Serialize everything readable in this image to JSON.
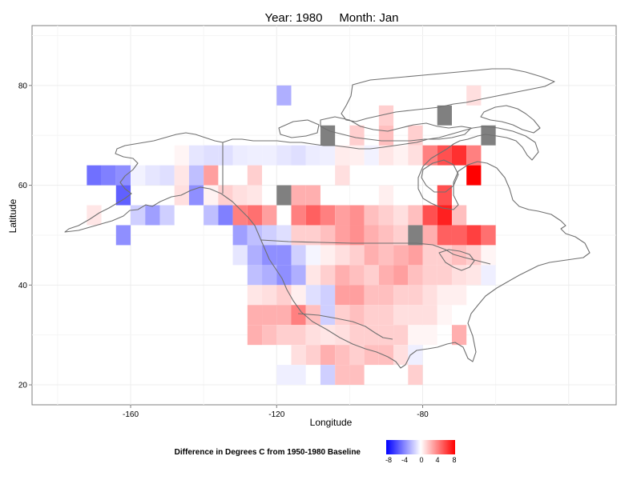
{
  "title": {
    "year_label": "Year: 1980",
    "month_label": "Month: Jan"
  },
  "axes": {
    "xlabel": "Longitude",
    "ylabel": "Latitude",
    "xticks": [
      -160,
      -120,
      -80
    ],
    "yticks": [
      20,
      40,
      60,
      80
    ],
    "xlim": [
      -187,
      -27
    ],
    "ylim": [
      16,
      92
    ]
  },
  "legend": {
    "title": "Difference in Degrees C from 1950-1980 Baseline",
    "ticks": [
      "-8",
      "-4",
      "0",
      "4",
      "8"
    ],
    "colors": {
      "low": "#0000ff",
      "mid": "#ffffff",
      "high": "#ff0000",
      "missing": "#808080"
    }
  },
  "chart_data": {
    "type": "heatmap",
    "cell_size_degrees": 4,
    "value_units": "degrees C difference",
    "cells": [
      {
        "lon": -170,
        "lat": 62,
        "v": -4.5
      },
      {
        "lon": -166,
        "lat": 62,
        "v": -4
      },
      {
        "lon": -162,
        "lat": 62,
        "v": -3.5
      },
      {
        "lon": -162,
        "lat": 58,
        "v": -5
      },
      {
        "lon": -170,
        "lat": 54,
        "v": 0.8
      },
      {
        "lon": -158,
        "lat": 54,
        "v": -1.5
      },
      {
        "lon": -154,
        "lat": 54,
        "v": -3
      },
      {
        "lon": -150,
        "lat": 54,
        "v": -1.5
      },
      {
        "lon": -162,
        "lat": 50,
        "v": -3.5
      },
      {
        "lon": -158,
        "lat": 62,
        "v": -0.4
      },
      {
        "lon": -154,
        "lat": 62,
        "v": -0.8
      },
      {
        "lon": -150,
        "lat": 62,
        "v": -1
      },
      {
        "lon": -146,
        "lat": 62,
        "v": 0.8
      },
      {
        "lon": -142,
        "lat": 62,
        "v": -2
      },
      {
        "lon": -138,
        "lat": 62,
        "v": 3
      },
      {
        "lon": -146,
        "lat": 58,
        "v": 1
      },
      {
        "lon": -142,
        "lat": 58,
        "v": -3.5
      },
      {
        "lon": -138,
        "lat": 58,
        "v": 0.4
      },
      {
        "lon": -134,
        "lat": 58,
        "v": 1.5
      },
      {
        "lon": -130,
        "lat": 58,
        "v": 1
      },
      {
        "lon": -138,
        "lat": 54,
        "v": -2
      },
      {
        "lon": -134,
        "lat": 54,
        "v": -4
      },
      {
        "lon": -118,
        "lat": 78,
        "v": -2.5
      },
      {
        "lon": -146,
        "lat": 66,
        "v": 0.3
      },
      {
        "lon": -142,
        "lat": 66,
        "v": -0.8
      },
      {
        "lon": -138,
        "lat": 66,
        "v": -1
      },
      {
        "lon": -134,
        "lat": 66,
        "v": -1
      },
      {
        "lon": -130,
        "lat": 66,
        "v": -0.6
      },
      {
        "lon": -126,
        "lat": 66,
        "v": -0.5
      },
      {
        "lon": -122,
        "lat": 66,
        "v": -0.5
      },
      {
        "lon": -118,
        "lat": 66,
        "v": -0.8
      },
      {
        "lon": -114,
        "lat": 66,
        "v": -1
      },
      {
        "lon": -110,
        "lat": 66,
        "v": -0.6
      },
      {
        "lon": -106,
        "lat": 66,
        "v": -0.5
      },
      {
        "lon": -102,
        "lat": 66,
        "v": 0.6
      },
      {
        "lon": -98,
        "lat": 66,
        "v": 0.5
      },
      {
        "lon": -94,
        "lat": 66,
        "v": -0.4
      },
      {
        "lon": -90,
        "lat": 66,
        "v": 0.8
      },
      {
        "lon": -86,
        "lat": 66,
        "v": 0.4
      },
      {
        "lon": -82,
        "lat": 66,
        "v": 1
      },
      {
        "lon": -78,
        "lat": 66,
        "v": 4
      },
      {
        "lon": -74,
        "lat": 66,
        "v": 5.5
      },
      {
        "lon": -70,
        "lat": 66,
        "v": 6.5
      },
      {
        "lon": -66,
        "lat": 66,
        "v": 4
      },
      {
        "lon": -126,
        "lat": 62,
        "v": 1.5
      },
      {
        "lon": -102,
        "lat": 62,
        "v": 1
      },
      {
        "lon": -66,
        "lat": 62,
        "v": 8
      },
      {
        "lon": -126,
        "lat": 58,
        "v": 0.8
      },
      {
        "lon": -114,
        "lat": 58,
        "v": 2.5
      },
      {
        "lon": -110,
        "lat": 58,
        "v": 2.5
      },
      {
        "lon": -90,
        "lat": 58,
        "v": 0.5
      },
      {
        "lon": -74,
        "lat": 58,
        "v": 5.5
      },
      {
        "lon": -130,
        "lat": 54,
        "v": 4
      },
      {
        "lon": -126,
        "lat": 54,
        "v": 4.5
      },
      {
        "lon": -122,
        "lat": 54,
        "v": 3
      },
      {
        "lon": -114,
        "lat": 54,
        "v": 4
      },
      {
        "lon": -110,
        "lat": 54,
        "v": 5
      },
      {
        "lon": -106,
        "lat": 54,
        "v": 4
      },
      {
        "lon": -102,
        "lat": 54,
        "v": 3
      },
      {
        "lon": -98,
        "lat": 54,
        "v": 3.5
      },
      {
        "lon": -94,
        "lat": 54,
        "v": 2
      },
      {
        "lon": -90,
        "lat": 54,
        "v": 1.5
      },
      {
        "lon": -86,
        "lat": 54,
        "v": 1
      },
      {
        "lon": -82,
        "lat": 54,
        "v": 2
      },
      {
        "lon": -78,
        "lat": 54,
        "v": 5.5
      },
      {
        "lon": -74,
        "lat": 54,
        "v": 7
      },
      {
        "lon": -70,
        "lat": 54,
        "v": 2
      },
      {
        "lon": -130,
        "lat": 50,
        "v": -3
      },
      {
        "lon": -126,
        "lat": 50,
        "v": -2
      },
      {
        "lon": -122,
        "lat": 50,
        "v": -1.5
      },
      {
        "lon": -118,
        "lat": 50,
        "v": -1
      },
      {
        "lon": -114,
        "lat": 50,
        "v": 1.5
      },
      {
        "lon": -110,
        "lat": 50,
        "v": 1.5
      },
      {
        "lon": -106,
        "lat": 50,
        "v": 2
      },
      {
        "lon": -102,
        "lat": 50,
        "v": 3
      },
      {
        "lon": -98,
        "lat": 50,
        "v": 3.5
      },
      {
        "lon": -94,
        "lat": 50,
        "v": 2.5
      },
      {
        "lon": -90,
        "lat": 50,
        "v": 2
      },
      {
        "lon": -86,
        "lat": 50,
        "v": 1.5
      },
      {
        "lon": -78,
        "lat": 50,
        "v": 2.5
      },
      {
        "lon": -74,
        "lat": 50,
        "v": 5
      },
      {
        "lon": -70,
        "lat": 50,
        "v": 5
      },
      {
        "lon": -66,
        "lat": 50,
        "v": 6
      },
      {
        "lon": -62,
        "lat": 50,
        "v": 4.5
      },
      {
        "lon": -130,
        "lat": 46,
        "v": -0.8
      },
      {
        "lon": -126,
        "lat": 46,
        "v": -2.5
      },
      {
        "lon": -122,
        "lat": 46,
        "v": -3.5
      },
      {
        "lon": -118,
        "lat": 46,
        "v": -3.5
      },
      {
        "lon": -114,
        "lat": 46,
        "v": -1.5
      },
      {
        "lon": -110,
        "lat": 46,
        "v": -0.3
      },
      {
        "lon": -106,
        "lat": 46,
        "v": 0.5
      },
      {
        "lon": -102,
        "lat": 46,
        "v": 1
      },
      {
        "lon": -98,
        "lat": 46,
        "v": 1.5
      },
      {
        "lon": -94,
        "lat": 46,
        "v": 2.5
      },
      {
        "lon": -90,
        "lat": 46,
        "v": 2
      },
      {
        "lon": -86,
        "lat": 46,
        "v": 2.5
      },
      {
        "lon": -82,
        "lat": 46,
        "v": 3
      },
      {
        "lon": -78,
        "lat": 46,
        "v": 1.5
      },
      {
        "lon": -74,
        "lat": 46,
        "v": 1.5
      },
      {
        "lon": -70,
        "lat": 46,
        "v": 2
      },
      {
        "lon": -66,
        "lat": 46,
        "v": 1.5
      },
      {
        "lon": -62,
        "lat": 46,
        "v": 0.3
      },
      {
        "lon": -126,
        "lat": 42,
        "v": -2
      },
      {
        "lon": -122,
        "lat": 42,
        "v": -2.5
      },
      {
        "lon": -118,
        "lat": 42,
        "v": -3.5
      },
      {
        "lon": -114,
        "lat": 42,
        "v": -2.5
      },
      {
        "lon": -110,
        "lat": 42,
        "v": 0.8
      },
      {
        "lon": -106,
        "lat": 42,
        "v": 1.5
      },
      {
        "lon": -102,
        "lat": 42,
        "v": 2.5
      },
      {
        "lon": -98,
        "lat": 42,
        "v": 2
      },
      {
        "lon": -94,
        "lat": 42,
        "v": 1.5
      },
      {
        "lon": -90,
        "lat": 42,
        "v": 2.5
      },
      {
        "lon": -86,
        "lat": 42,
        "v": 3
      },
      {
        "lon": -82,
        "lat": 42,
        "v": 2
      },
      {
        "lon": -78,
        "lat": 42,
        "v": 1.5
      },
      {
        "lon": -74,
        "lat": 42,
        "v": 1.5
      },
      {
        "lon": -70,
        "lat": 42,
        "v": 1
      },
      {
        "lon": -66,
        "lat": 42,
        "v": 0.8
      },
      {
        "lon": -62,
        "lat": 42,
        "v": -0.5
      },
      {
        "lon": -126,
        "lat": 38,
        "v": 0.8
      },
      {
        "lon": -122,
        "lat": 38,
        "v": 1
      },
      {
        "lon": -118,
        "lat": 38,
        "v": 1.5
      },
      {
        "lon": -114,
        "lat": 38,
        "v": 0.5
      },
      {
        "lon": -110,
        "lat": 38,
        "v": -1
      },
      {
        "lon": -106,
        "lat": 38,
        "v": -1.5
      },
      {
        "lon": -102,
        "lat": 38,
        "v": 3
      },
      {
        "lon": -98,
        "lat": 38,
        "v": 3
      },
      {
        "lon": -94,
        "lat": 38,
        "v": 2
      },
      {
        "lon": -90,
        "lat": 38,
        "v": 2
      },
      {
        "lon": -86,
        "lat": 38,
        "v": 1.5
      },
      {
        "lon": -82,
        "lat": 38,
        "v": 1.5
      },
      {
        "lon": -78,
        "lat": 38,
        "v": 1
      },
      {
        "lon": -74,
        "lat": 38,
        "v": 0.5
      },
      {
        "lon": -70,
        "lat": 38,
        "v": 0.5
      },
      {
        "lon": -126,
        "lat": 34,
        "v": 2.5
      },
      {
        "lon": -122,
        "lat": 34,
        "v": 2.5
      },
      {
        "lon": -118,
        "lat": 34,
        "v": 2.5
      },
      {
        "lon": -114,
        "lat": 34,
        "v": 4
      },
      {
        "lon": -110,
        "lat": 34,
        "v": 2
      },
      {
        "lon": -106,
        "lat": 34,
        "v": -1.5
      },
      {
        "lon": -102,
        "lat": 34,
        "v": 1.5
      },
      {
        "lon": -98,
        "lat": 34,
        "v": 2
      },
      {
        "lon": -94,
        "lat": 34,
        "v": 1.5
      },
      {
        "lon": -90,
        "lat": 34,
        "v": 1.5
      },
      {
        "lon": -86,
        "lat": 34,
        "v": 1
      },
      {
        "lon": -82,
        "lat": 34,
        "v": 1
      },
      {
        "lon": -78,
        "lat": 34,
        "v": 1
      },
      {
        "lon": -74,
        "lat": 34,
        "v": 0.3
      },
      {
        "lon": -126,
        "lat": 30,
        "v": 2.5
      },
      {
        "lon": -122,
        "lat": 30,
        "v": 2
      },
      {
        "lon": -118,
        "lat": 30,
        "v": 1.5
      },
      {
        "lon": -114,
        "lat": 30,
        "v": 1.5
      },
      {
        "lon": -110,
        "lat": 30,
        "v": 1
      },
      {
        "lon": -106,
        "lat": 30,
        "v": 0.8
      },
      {
        "lon": -102,
        "lat": 30,
        "v": 1
      },
      {
        "lon": -98,
        "lat": 30,
        "v": 1.5
      },
      {
        "lon": -94,
        "lat": 30,
        "v": 1.5
      },
      {
        "lon": -90,
        "lat": 30,
        "v": 1.5
      },
      {
        "lon": -86,
        "lat": 30,
        "v": 1.5
      },
      {
        "lon": -82,
        "lat": 30,
        "v": 0.3
      },
      {
        "lon": -78,
        "lat": 30,
        "v": 0.3
      },
      {
        "lon": -70,
        "lat": 30,
        "v": 2.5
      },
      {
        "lon": -114,
        "lat": 26,
        "v": 1
      },
      {
        "lon": -110,
        "lat": 26,
        "v": 1.5
      },
      {
        "lon": -106,
        "lat": 26,
        "v": 2.5
      },
      {
        "lon": -102,
        "lat": 26,
        "v": 2
      },
      {
        "lon": -98,
        "lat": 26,
        "v": 1.5
      },
      {
        "lon": -94,
        "lat": 26,
        "v": 2
      },
      {
        "lon": -90,
        "lat": 26,
        "v": 2
      },
      {
        "lon": -86,
        "lat": 26,
        "v": 1
      },
      {
        "lon": -82,
        "lat": 26,
        "v": -0.5
      },
      {
        "lon": -118,
        "lat": 22,
        "v": -0.5
      },
      {
        "lon": -114,
        "lat": 22,
        "v": -0.5
      },
      {
        "lon": -106,
        "lat": 22,
        "v": -1.5
      },
      {
        "lon": -102,
        "lat": 22,
        "v": 2
      },
      {
        "lon": -98,
        "lat": 22,
        "v": 2
      },
      {
        "lon": -82,
        "lat": 22,
        "v": 1.5
      },
      {
        "lon": -90,
        "lat": 74,
        "v": 1.5
      },
      {
        "lon": -90,
        "lat": 70,
        "v": 2
      },
      {
        "lon": -98,
        "lat": 70,
        "v": 1.5
      },
      {
        "lon": -82,
        "lat": 70,
        "v": 1.5
      },
      {
        "lon": -66,
        "lat": 78,
        "v": 1
      },
      {
        "lon": -106,
        "lat": 70,
        "v": null
      },
      {
        "lon": -74,
        "lat": 74,
        "v": null
      },
      {
        "lon": -62,
        "lat": 70,
        "v": null
      },
      {
        "lon": -118,
        "lat": 58,
        "v": null
      },
      {
        "lon": -82,
        "lat": 50,
        "v": null
      }
    ]
  }
}
